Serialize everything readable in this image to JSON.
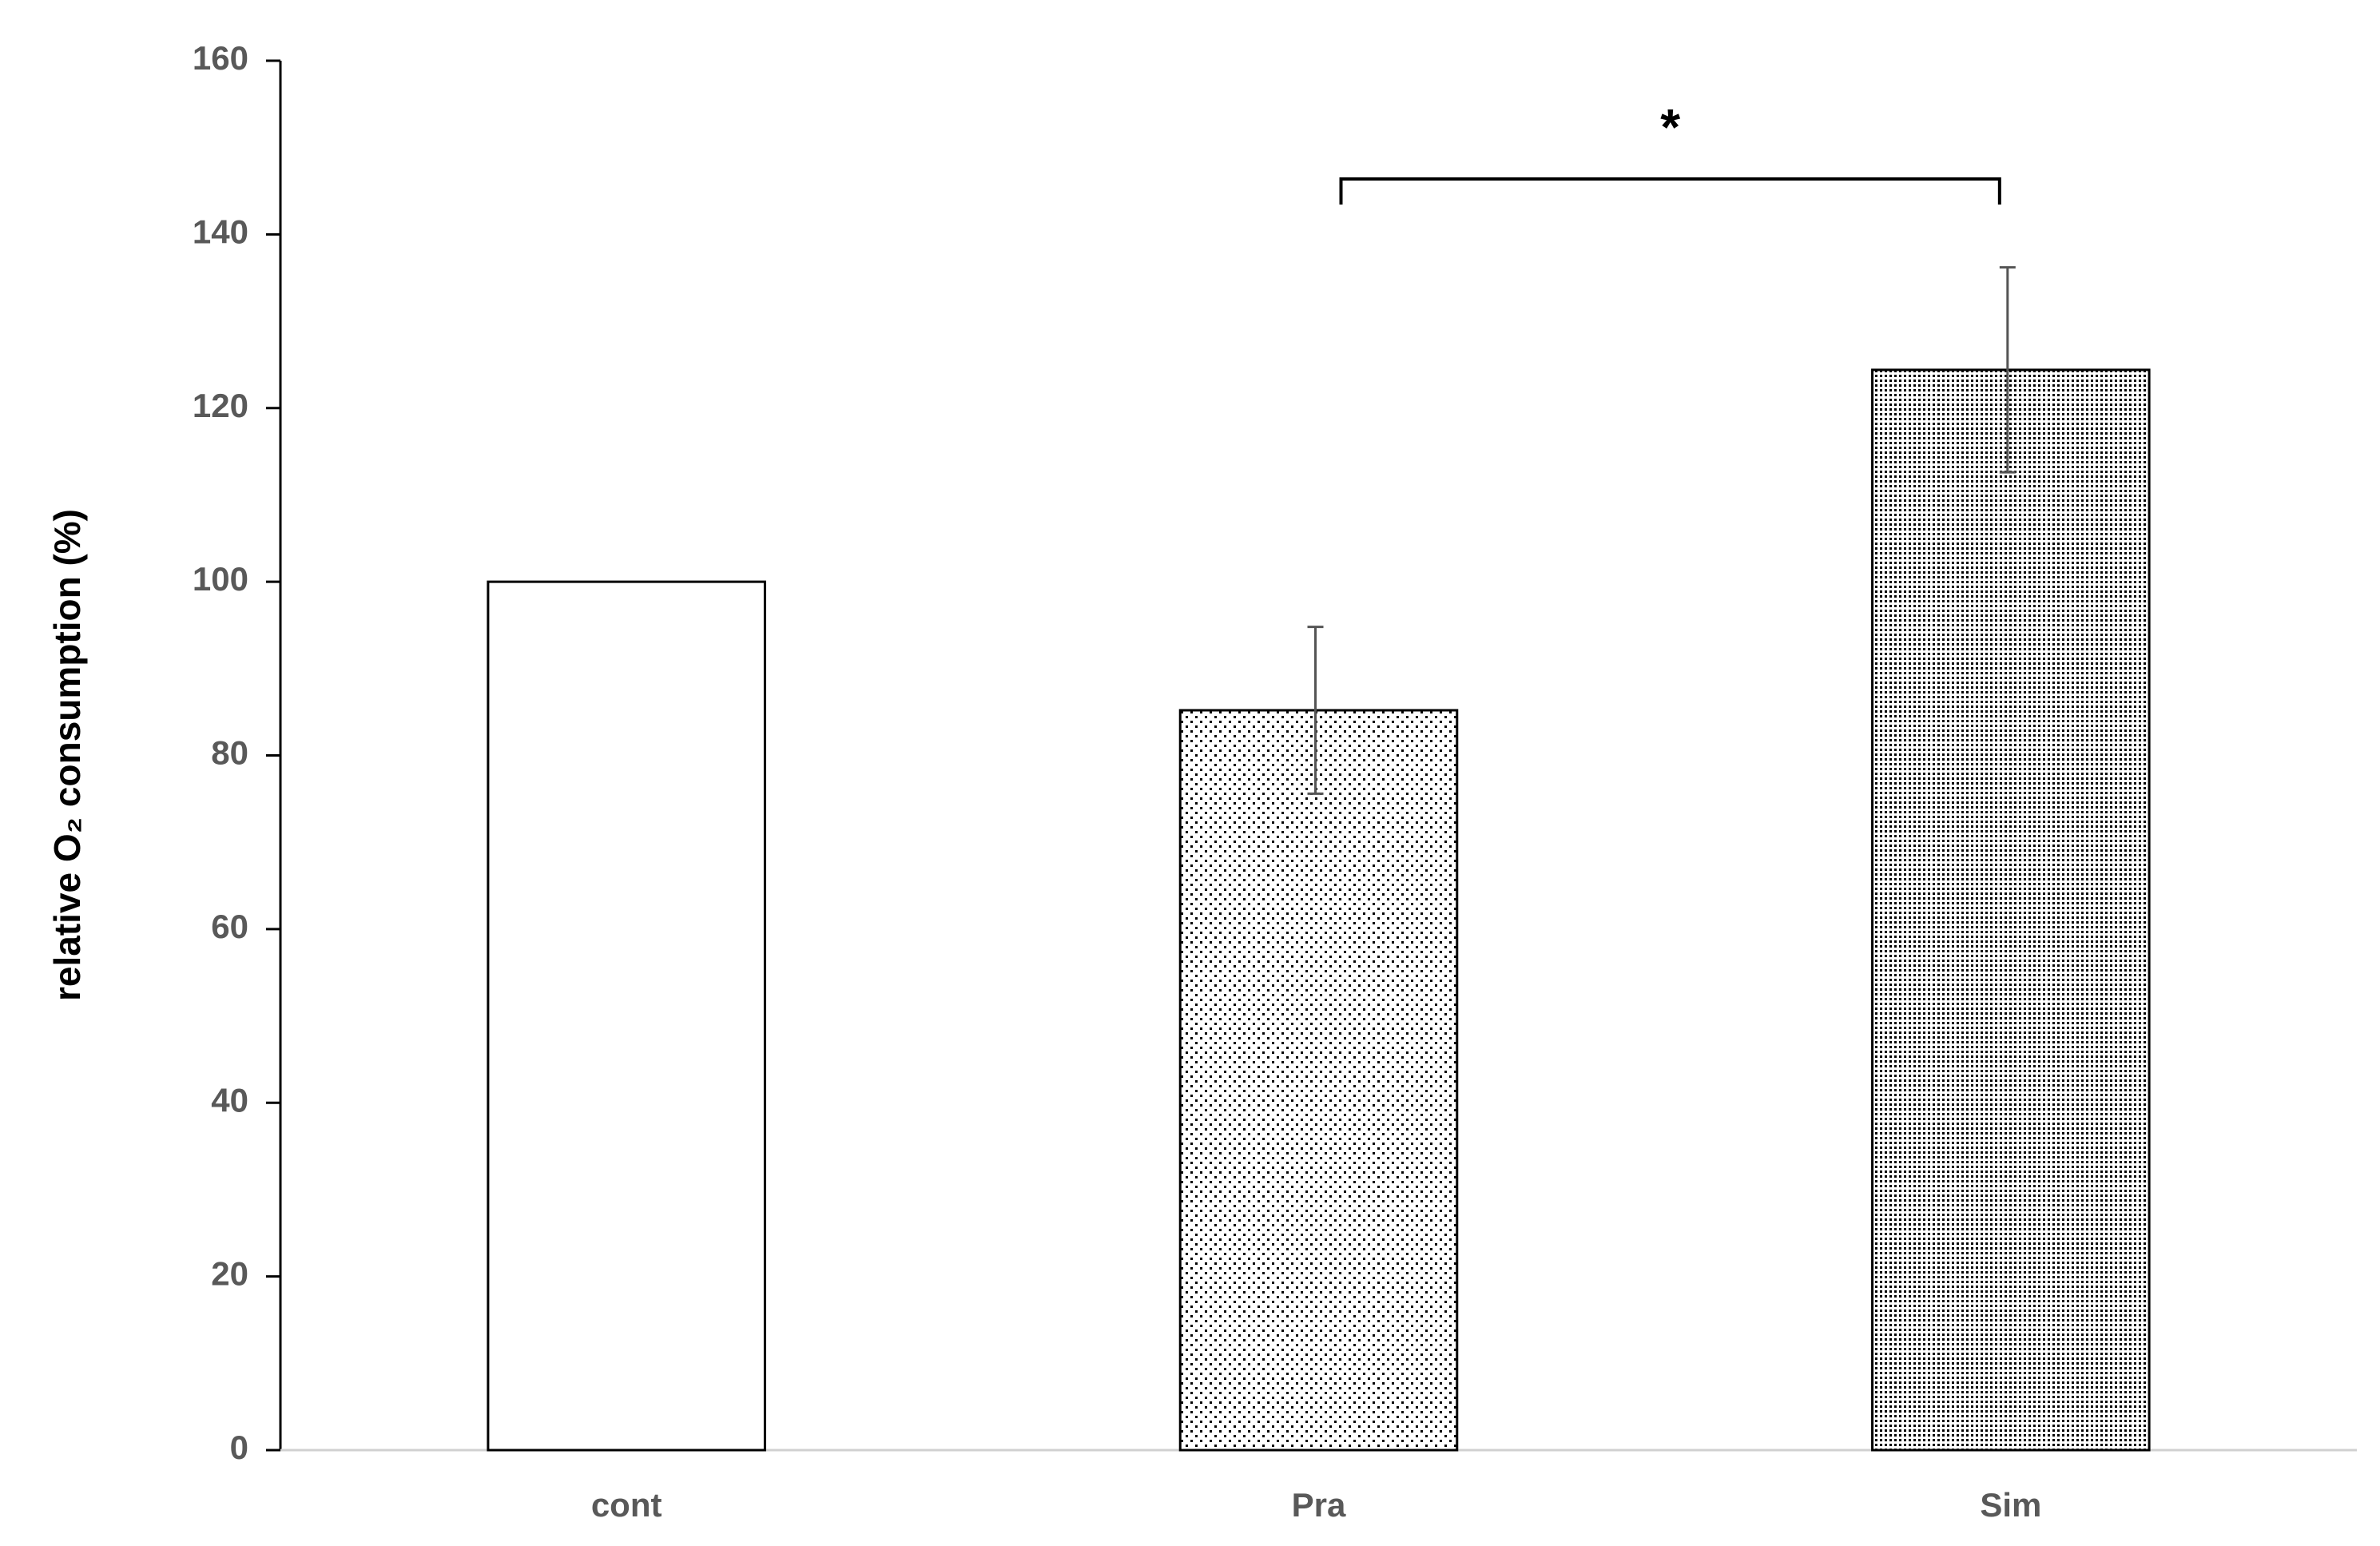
{
  "chart_data": {
    "type": "bar",
    "y_label": "relative O₂ consumption (%)",
    "categories": [
      "cont",
      "Pra",
      "Sim"
    ],
    "values": [
      100,
      85.2,
      124.4
    ],
    "errors": [
      null,
      9.6,
      11.8
    ],
    "patterns": [
      "none",
      "sparse-dots",
      "dense-dots"
    ],
    "color": "#000000",
    "ylim": [
      0,
      160
    ],
    "yticks": [
      0,
      20,
      40,
      60,
      80,
      100,
      120,
      140,
      160
    ],
    "annotations": [
      {
        "text": "*",
        "categories": [
          "Pra",
          "Sim"
        ]
      }
    ]
  }
}
